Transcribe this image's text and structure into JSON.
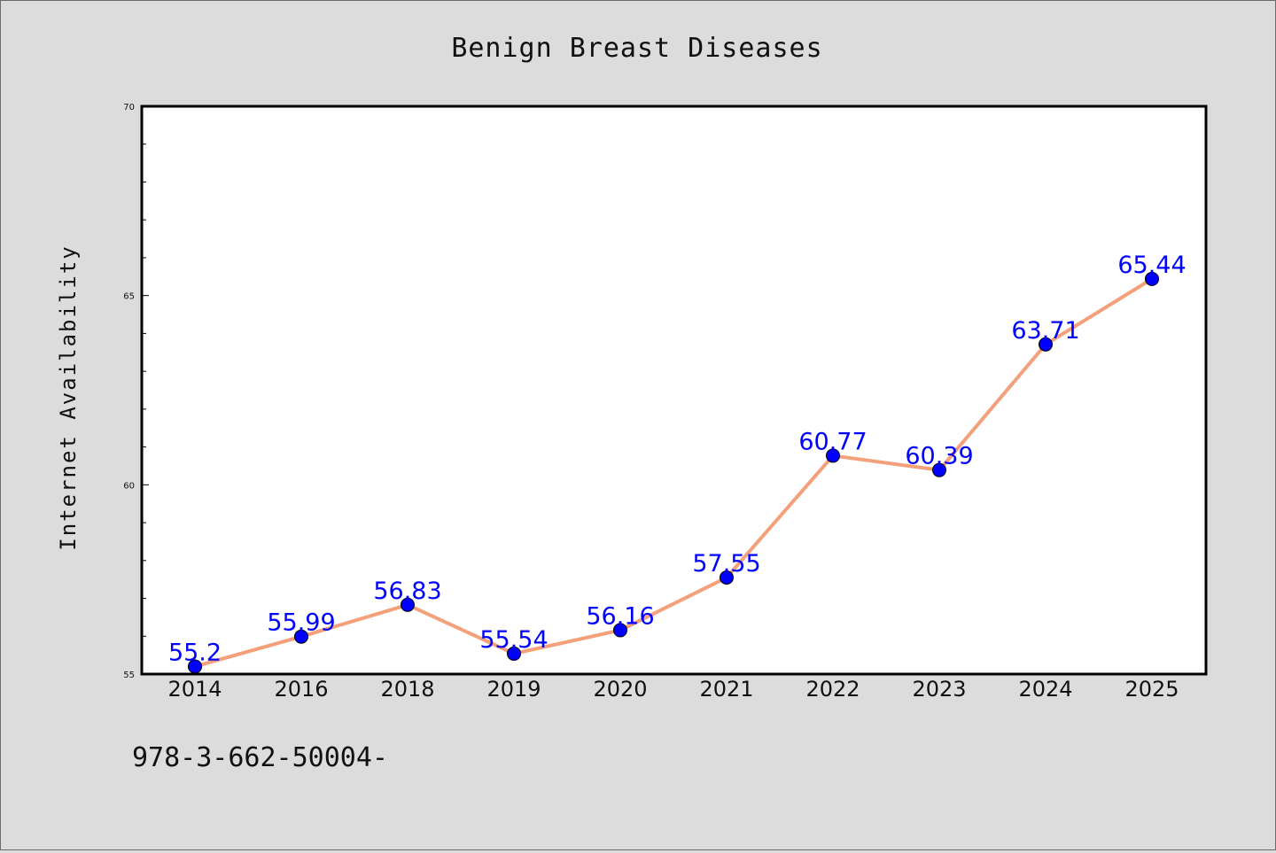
{
  "chart_data": {
    "type": "line",
    "title": "Benign Breast Diseases",
    "xlabel": "",
    "ylabel": "Internet Availability",
    "categories": [
      "2014",
      "2016",
      "2018",
      "2019",
      "2020",
      "2021",
      "2022",
      "2023",
      "2024",
      "2025"
    ],
    "values": [
      55.2,
      55.99,
      56.83,
      55.54,
      56.16,
      57.55,
      60.77,
      60.39,
      63.71,
      65.44
    ],
    "data_labels": [
      "55.2",
      "55.99",
      "56.83",
      "55.54",
      "56.16",
      "57.55",
      "60.77",
      "60.39",
      "63.71",
      "65.44"
    ],
    "ylim": [
      55,
      70
    ],
    "yticks": [
      "55",
      "60",
      "65",
      "70"
    ],
    "grid": false,
    "line_color": "#f4a07a",
    "marker_color": "#0000ff",
    "label_color": "#0000ff"
  },
  "footnote": "978-3-662-50004-",
  "colors": {
    "background": "#dcdcdc",
    "plot_area": "#ffffff",
    "axis": "#000000"
  }
}
